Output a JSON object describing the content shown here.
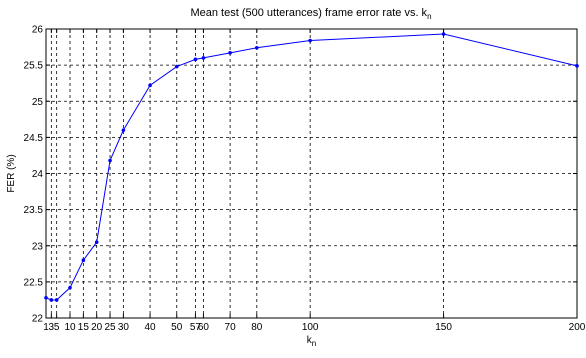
{
  "chart_data": {
    "type": "line",
    "title": "Mean test (500 utterances) frame error rate vs. k",
    "title_subscript": "n",
    "xlabel": "k",
    "xlabel_subscript": "n",
    "ylabel": "FER (%)",
    "xlim": [
      1,
      200
    ],
    "ylim": [
      22,
      26
    ],
    "grid": true,
    "x_ticks": [
      1,
      3,
      5,
      10,
      15,
      20,
      25,
      30,
      40,
      50,
      57,
      60,
      70,
      80,
      100,
      150,
      200
    ],
    "x_tick_labels": [
      "1",
      "3",
      "5",
      "10",
      "15",
      "20",
      "25",
      "30",
      "40",
      "50",
      "57",
      "60",
      "70",
      "80",
      "100",
      "150",
      "200"
    ],
    "y_ticks": [
      22,
      22.5,
      23,
      23.5,
      24,
      24.5,
      25,
      25.5,
      26
    ],
    "y_tick_labels": [
      "22",
      "22.5",
      "23",
      "23.5",
      "24",
      "24.5",
      "25",
      "25.5",
      "26"
    ],
    "line_color": "#0000ff",
    "series": [
      {
        "x": [
          1,
          3,
          5,
          10,
          15,
          20,
          25,
          30,
          40,
          50,
          57,
          60,
          70,
          80,
          100,
          150,
          200
        ],
        "y": [
          22.28,
          22.25,
          22.25,
          22.42,
          22.8,
          23.05,
          24.18,
          24.6,
          25.22,
          25.48,
          25.58,
          25.6,
          25.67,
          25.74,
          25.84,
          25.93,
          25.49
        ]
      }
    ]
  }
}
